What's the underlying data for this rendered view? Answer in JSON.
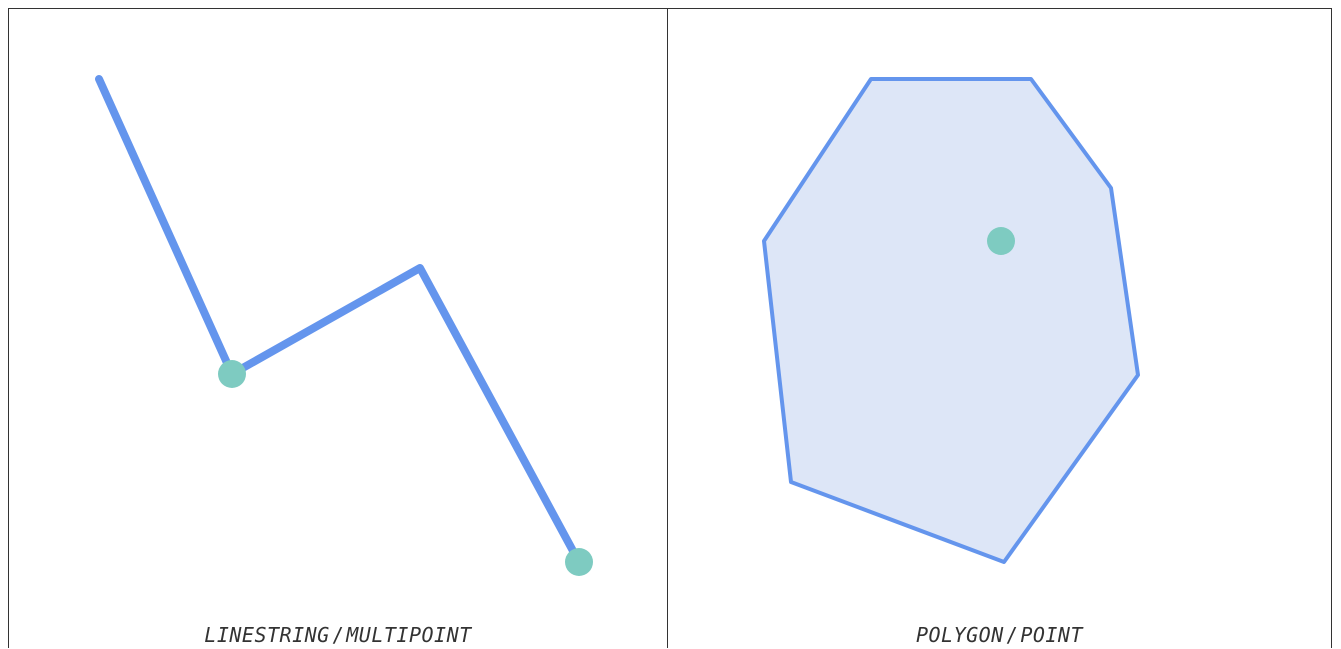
{
  "colors": {
    "line": "#6495ED",
    "point": "#7ECBC1",
    "polygon_fill": "#DDE6F7",
    "border": "#333333",
    "caption_text": "#333333"
  },
  "panels": [
    {
      "caption_left": "LINESTRING",
      "caption_separator": "/",
      "caption_right": "MULTIPOINT"
    },
    {
      "caption_left": "POLYGON",
      "caption_separator": "/",
      "caption_right": "POINT"
    }
  ]
}
